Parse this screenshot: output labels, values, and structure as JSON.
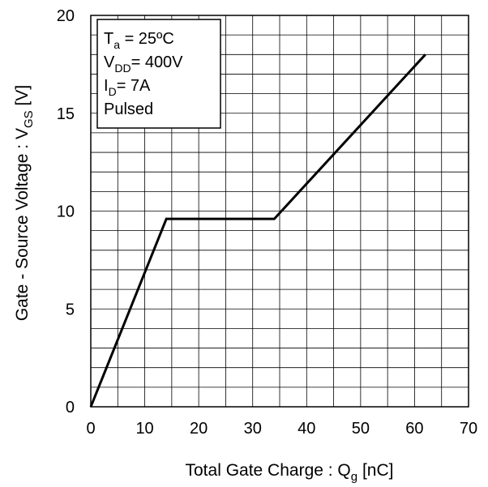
{
  "chart_data": {
    "type": "line",
    "xlabel": {
      "main": "Total Gate Charge : Q",
      "sub": "g",
      "unit": " [nC]"
    },
    "ylabel": {
      "main": "Gate - Source Voltage : V",
      "sub": "GS",
      "unit": " [V]"
    },
    "xlim": [
      0,
      70
    ],
    "ylim": [
      0,
      20
    ],
    "x_ticks": [
      0,
      10,
      20,
      30,
      40,
      50,
      60,
      70
    ],
    "y_ticks": [
      0,
      5,
      10,
      15,
      20
    ],
    "x_minor_step": 5,
    "y_minor_step": 1,
    "grid": true,
    "legend_box": [
      {
        "pre": "T",
        "sub": "a",
        "post": " = 25ºC"
      },
      {
        "pre": "V",
        "sub": "DD",
        "post": "= 400V"
      },
      {
        "pre": "I",
        "sub": "D",
        "post": "= 7A"
      },
      {
        "pre": "Pulsed",
        "sub": "",
        "post": ""
      }
    ],
    "series": [
      {
        "x": [
          0,
          14,
          34,
          62
        ],
        "y": [
          0,
          9.6,
          9.6,
          18
        ],
        "color": "#000000"
      }
    ]
  }
}
